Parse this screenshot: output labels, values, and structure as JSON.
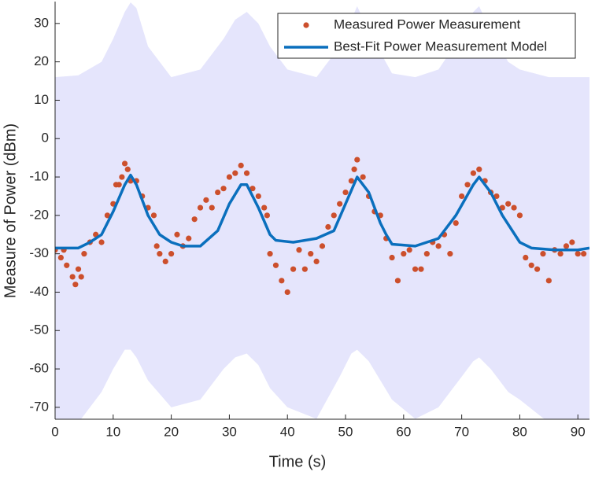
{
  "chart_data": {
    "type": "scatter",
    "xlabel": "Time (s)",
    "ylabel": "Measure of Power (dBm)",
    "xlim": [
      0,
      92
    ],
    "ylim": [
      -73.1,
      35.7
    ],
    "xticks": [
      0,
      10,
      20,
      30,
      40,
      50,
      60,
      70,
      80,
      90
    ],
    "yticks": [
      -70,
      -60,
      -50,
      -40,
      -30,
      -20,
      -10,
      0,
      10,
      20,
      30
    ],
    "legend": "upper right",
    "band": {
      "color": "#e5e5fc",
      "x": [
        0,
        4,
        8,
        10,
        12,
        13,
        14,
        16,
        20,
        25,
        29,
        31,
        33,
        35,
        37,
        40,
        45,
        49,
        51,
        52,
        54,
        58,
        62,
        66,
        70,
        72,
        73,
        75,
        78,
        80,
        85,
        92
      ],
      "upper": [
        16,
        16.5,
        20,
        26,
        33,
        35.5,
        34,
        24,
        16,
        18,
        26,
        31,
        33,
        30,
        24,
        18,
        16,
        24,
        31,
        34.5,
        28,
        17,
        16,
        18,
        27,
        33,
        34.5,
        28,
        20,
        18,
        16,
        16
      ],
      "lower": [
        -75,
        -74,
        -66,
        -60,
        -55,
        -55,
        -57,
        -63,
        -70,
        -68,
        -60,
        -57,
        -56,
        -59,
        -65,
        -70,
        -73,
        -62,
        -56,
        -55,
        -58,
        -68,
        -73,
        -70,
        -62,
        -58,
        -57,
        -60,
        -66,
        -68,
        -74,
        -75
      ]
    },
    "series": [
      {
        "name": "Measured Power Measurement",
        "type": "scatter",
        "color": "#cc4f2c",
        "x": [
          0,
          1,
          1.5,
          2,
          3,
          3.5,
          4,
          4.5,
          5,
          6,
          7,
          8,
          9,
          10,
          10.5,
          11,
          11.5,
          12,
          12.5,
          13,
          14,
          15,
          16,
          17,
          17.5,
          18,
          19,
          20,
          21,
          22,
          23,
          24,
          25,
          26,
          27,
          28,
          29,
          30,
          31,
          32,
          33,
          34,
          35,
          36,
          36.5,
          37,
          38,
          39,
          40,
          41,
          42,
          43,
          44,
          45,
          46,
          47,
          48,
          49,
          50,
          51,
          51.5,
          52,
          53,
          54,
          55,
          56,
          57,
          58,
          59,
          60,
          61,
          62,
          63,
          64,
          65,
          66,
          67,
          68,
          69,
          70,
          71,
          72,
          73,
          74,
          75,
          76,
          77,
          78,
          79,
          80,
          81,
          82,
          83,
          84,
          85,
          86,
          87,
          88,
          89,
          90,
          91
        ],
        "values": [
          -29,
          -31,
          -29,
          -33,
          -36,
          -38,
          -34,
          -36,
          -30,
          -27,
          -25,
          -27,
          -20,
          -17,
          -12,
          -12,
          -10,
          -6.5,
          -8,
          -11,
          -11,
          -15,
          -18,
          -20,
          -28,
          -30,
          -32,
          -30,
          -25,
          -28,
          -26,
          -21,
          -18,
          -16,
          -18,
          -14,
          -13,
          -10,
          -9,
          -7,
          -9,
          -13,
          -15,
          -18,
          -20,
          -30,
          -33,
          -37,
          -40,
          -34,
          -29,
          -34,
          -30,
          -32,
          -28,
          -23,
          -20,
          -17,
          -14,
          -11,
          -8,
          -5.5,
          -10,
          -15,
          -19,
          -20,
          -26,
          -31,
          -37,
          -30,
          -29,
          -34,
          -34,
          -30,
          -27,
          -28,
          -25,
          -30,
          -22,
          -15,
          -12,
          -9,
          -8,
          -11,
          -14,
          -15,
          -18,
          -17,
          -18,
          -20,
          -31,
          -33,
          -34,
          -30,
          -37,
          -29,
          -30,
          -28,
          -27,
          -30,
          -30
        ]
      },
      {
        "name": "Best-Fit Power Measurement Model",
        "type": "line",
        "color": "#0a6fbd",
        "x": [
          0,
          4,
          6,
          8,
          10,
          12,
          13,
          14,
          16,
          18,
          20,
          22,
          25,
          28,
          30,
          32,
          33,
          35,
          37,
          38,
          41,
          45,
          48,
          50,
          52,
          54,
          56,
          57,
          58,
          62,
          66,
          69,
          72,
          73,
          75,
          77,
          80,
          82,
          86,
          90,
          92
        ],
        "values": [
          -28.5,
          -28.5,
          -27,
          -25,
          -19,
          -12,
          -9.5,
          -12,
          -20,
          -25,
          -27,
          -28,
          -28,
          -24,
          -17,
          -12,
          -12,
          -18,
          -25,
          -26.5,
          -27,
          -26,
          -24,
          -17,
          -10,
          -14,
          -22,
          -25,
          -27.5,
          -28,
          -26,
          -20,
          -12,
          -10,
          -14,
          -20,
          -27,
          -28.5,
          -29,
          -29,
          -28.5
        ]
      }
    ]
  }
}
